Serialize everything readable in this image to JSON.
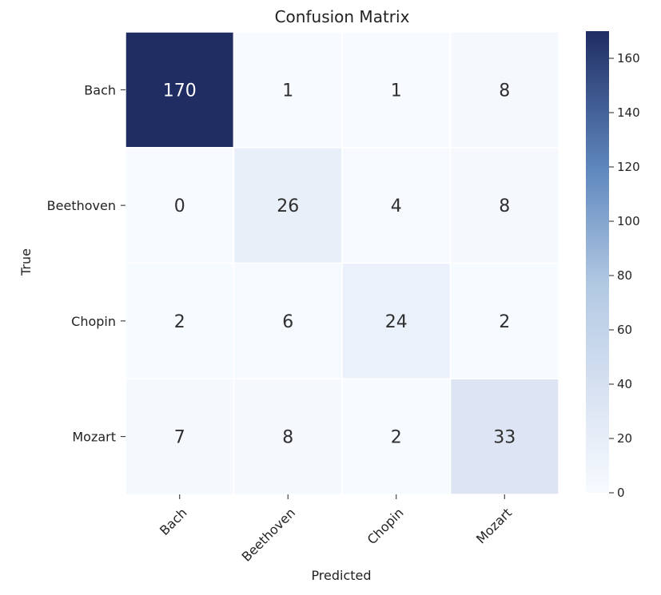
{
  "chart_data": {
    "type": "heatmap",
    "title": "Confusion Matrix",
    "xlabel": "Predicted",
    "ylabel": "True",
    "x_categories": [
      "Bach",
      "Beethoven",
      "Chopin",
      "Mozart"
    ],
    "y_categories": [
      "Bach",
      "Beethoven",
      "Chopin",
      "Mozart"
    ],
    "values": [
      [
        170,
        1,
        1,
        8
      ],
      [
        0,
        26,
        4,
        8
      ],
      [
        2,
        6,
        24,
        2
      ],
      [
        7,
        8,
        2,
        33
      ]
    ],
    "colorbar": {
      "min": 0,
      "max": 170,
      "ticks": [
        0,
        20,
        40,
        60,
        80,
        100,
        120,
        140,
        160
      ]
    },
    "colors": {
      "low": "#f7fbff",
      "high": "#1f2d63"
    }
  }
}
